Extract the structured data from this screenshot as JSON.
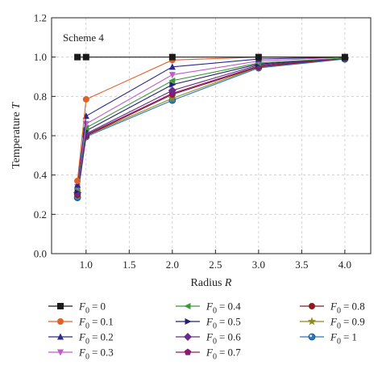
{
  "chart_data": {
    "type": "line",
    "title": "",
    "annotation": "Scheme 4",
    "xlabel": {
      "text": "Radius",
      "var": "R"
    },
    "ylabel": {
      "text": "Temperature",
      "var": "T"
    },
    "xlim": [
      0.6,
      4.3
    ],
    "ylim": [
      0.0,
      1.2
    ],
    "xticks": [
      1.0,
      1.5,
      2.0,
      2.5,
      3.0,
      3.5,
      4.0
    ],
    "xtick_labels": [
      "1.0",
      "1.5",
      "2.0",
      "2.5",
      "3.0",
      "3.5",
      "4.0"
    ],
    "yticks": [
      0.0,
      0.2,
      0.4,
      0.6,
      0.8,
      1.0,
      1.2
    ],
    "ytick_labels": [
      "0.0",
      "0.2",
      "0.4",
      "0.6",
      "0.8",
      "1.0",
      "1.2"
    ],
    "grid": true,
    "legend_position": "bottom",
    "legend_var": "F",
    "legend_sub": "0",
    "x": [
      0.9,
      1.0,
      2.0,
      3.0,
      4.0
    ],
    "series": [
      {
        "name": "= 0",
        "color": "#1a1a1a",
        "marker": "square",
        "x": [
          0.9,
          1.0,
          2.0,
          3.0,
          4.0
        ],
        "values": [
          1.0,
          1.0,
          1.0,
          1.0,
          1.0
        ]
      },
      {
        "name": "= 0.1",
        "color": "#e0622a",
        "marker": "circle",
        "values": [
          0.37,
          0.785,
          0.985,
          1.0,
          1.0
        ]
      },
      {
        "name": "= 0.2",
        "color": "#2b2a8c",
        "marker": "triangle-up",
        "values": [
          0.35,
          0.7,
          0.95,
          0.99,
          1.0
        ]
      },
      {
        "name": "= 0.3",
        "color": "#c45bc9",
        "marker": "triangle-down",
        "values": [
          0.34,
          0.66,
          0.91,
          0.98,
          1.0
        ]
      },
      {
        "name": "= 0.4",
        "color": "#3a9a3a",
        "marker": "triangle-left",
        "values": [
          0.33,
          0.64,
          0.88,
          0.97,
          0.995
        ]
      },
      {
        "name": "= 0.5",
        "color": "#25206e",
        "marker": "triangle-right",
        "values": [
          0.32,
          0.625,
          0.86,
          0.965,
          0.995
        ]
      },
      {
        "name": "= 0.6",
        "color": "#6a2a8a",
        "marker": "diamond",
        "values": [
          0.31,
          0.61,
          0.83,
          0.96,
          0.995
        ]
      },
      {
        "name": "= 0.7",
        "color": "#8a1a6a",
        "marker": "pentagon",
        "values": [
          0.305,
          0.605,
          0.815,
          0.955,
          0.993
        ]
      },
      {
        "name": "= 0.8",
        "color": "#8b1a1a",
        "marker": "circle",
        "values": [
          0.3,
          0.6,
          0.81,
          0.95,
          0.993
        ]
      },
      {
        "name": "= 0.9",
        "color": "#8a8a20",
        "marker": "star",
        "values": [
          0.295,
          0.6,
          0.79,
          0.95,
          0.992
        ]
      },
      {
        "name": "= 1",
        "color": "#2a78c2",
        "marker": "sphere",
        "values": [
          0.285,
          0.595,
          0.78,
          0.945,
          0.99
        ]
      }
    ]
  }
}
